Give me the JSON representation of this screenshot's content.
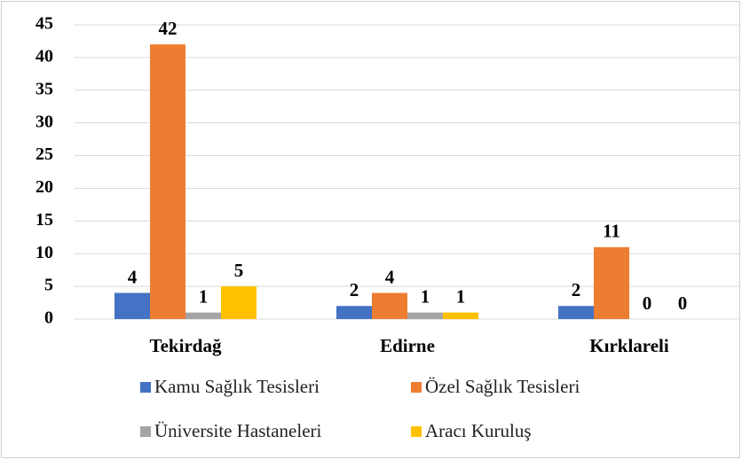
{
  "chart_data": {
    "type": "bar",
    "categories": [
      "Tekirdağ",
      "Edirne",
      "Kırklareli"
    ],
    "series": [
      {
        "name": "Kamu Sağlık Tesisleri",
        "color": "#4472c4",
        "values": [
          4,
          2,
          2
        ]
      },
      {
        "name": "Özel Sağlık Tesisleri",
        "color": "#ed7d31",
        "values": [
          42,
          4,
          11
        ]
      },
      {
        "name": "Üniversite Hastaneleri",
        "color": "#a5a5a5",
        "values": [
          1,
          1,
          0
        ]
      },
      {
        "name": "Aracı Kuruluş",
        "color": "#ffc000",
        "values": [
          5,
          1,
          0
        ]
      }
    ],
    "ylim": [
      0,
      45
    ],
    "yticks": [
      0,
      5,
      10,
      15,
      20,
      25,
      30,
      35,
      40,
      45
    ],
    "grid": true,
    "legend": "bottom"
  }
}
